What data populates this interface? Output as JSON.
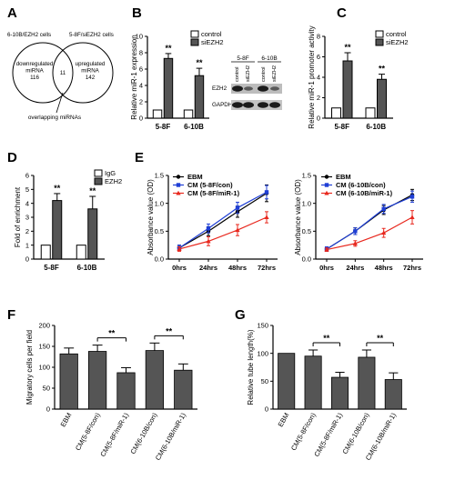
{
  "panels": {
    "A": {
      "letter": "A",
      "left_label": "6-10B/EZH2 cells",
      "right_label": "5-8F/siEZH2 cells",
      "left_inner": "downregulated\nmiRNA\n116",
      "right_inner": "upregulated\nmiRNA\n142",
      "overlap_count": "11",
      "bottom_label": "overlapping miRNAs"
    },
    "B": {
      "letter": "B",
      "western": {
        "cell_lines": [
          "5-8F",
          "6-10B"
        ],
        "lanes": [
          "control",
          "siEZH2",
          "control",
          "siEZH2"
        ],
        "rows": [
          "EZH2",
          "GAPDH"
        ]
      }
    },
    "C": {
      "letter": "C"
    },
    "D": {
      "letter": "D"
    },
    "E": {
      "letter": "E"
    },
    "F": {
      "letter": "F"
    },
    "G": {
      "letter": "G"
    }
  },
  "chart_data": [
    {
      "id": "B",
      "type": "bar",
      "ylabel": "Relative miR-1 expression",
      "ylim": [
        0,
        10
      ],
      "yticks": [
        0,
        2,
        4,
        6,
        8,
        10
      ],
      "categories": [
        "5-8F",
        "6-10B"
      ],
      "series": [
        {
          "name": "control",
          "values": [
            1.0,
            1.0
          ],
          "errors": [
            0,
            0
          ],
          "fill": "#ffffff"
        },
        {
          "name": "siEZH2",
          "values": [
            7.3,
            5.2
          ],
          "errors": [
            0.6,
            0.9
          ],
          "fill": "#555555"
        }
      ],
      "annotations": [
        "**",
        "**"
      ],
      "legend": "top-right"
    },
    {
      "id": "C",
      "type": "bar",
      "ylabel": "Relative miR-1 promoter activity",
      "ylim": [
        0,
        8
      ],
      "yticks": [
        0,
        2,
        4,
        6,
        8
      ],
      "categories": [
        "5-8F",
        "6-10B"
      ],
      "series": [
        {
          "name": "control",
          "values": [
            1.0,
            1.0
          ],
          "errors": [
            0,
            0
          ],
          "fill": "#ffffff"
        },
        {
          "name": "siEZH2",
          "values": [
            5.6,
            3.8
          ],
          "errors": [
            0.8,
            0.5
          ],
          "fill": "#555555"
        }
      ],
      "annotations": [
        "**",
        "**"
      ],
      "legend": "top-right"
    },
    {
      "id": "D",
      "type": "bar",
      "ylabel": "Fold of enrichment",
      "ylim": [
        0,
        6
      ],
      "yticks": [
        0,
        1,
        2,
        3,
        4,
        5,
        6
      ],
      "categories": [
        "5-8F",
        "6-10B"
      ],
      "series": [
        {
          "name": "IgG",
          "values": [
            1.0,
            1.0
          ],
          "errors": [
            0,
            0
          ],
          "fill": "#ffffff"
        },
        {
          "name": "EZH2",
          "values": [
            4.2,
            3.6
          ],
          "errors": [
            0.5,
            0.9
          ],
          "fill": "#555555"
        }
      ],
      "annotations": [
        "**",
        "**"
      ],
      "legend": "top-right"
    },
    {
      "id": "E1",
      "type": "line",
      "ylabel": "Absorbance value (OD)",
      "ylim": [
        0,
        1.5
      ],
      "yticks": [
        0.0,
        0.5,
        1.0,
        1.5
      ],
      "categories": [
        "0hrs",
        "24hrs",
        "48hrs",
        "72hrs"
      ],
      "series": [
        {
          "name": "EBM",
          "values": [
            0.2,
            0.5,
            0.85,
            1.18
          ],
          "errors": [
            0.05,
            0.08,
            0.1,
            0.15
          ],
          "color": "#000000",
          "marker": "circle"
        },
        {
          "name": "CM (5-8F/con)",
          "values": [
            0.2,
            0.55,
            0.92,
            1.2
          ],
          "errors": [
            0.05,
            0.08,
            0.1,
            0.12
          ],
          "color": "#1f3fd6",
          "marker": "square"
        },
        {
          "name": "CM (5-8F/miR-1)",
          "values": [
            0.18,
            0.32,
            0.52,
            0.75
          ],
          "errors": [
            0.04,
            0.08,
            0.1,
            0.1
          ],
          "color": "#e8281e",
          "marker": "triangle"
        }
      ],
      "legend": "top-left"
    },
    {
      "id": "E2",
      "type": "line",
      "ylabel": "Absorbance value (OD)",
      "ylim": [
        0,
        1.5
      ],
      "yticks": [
        0.0,
        0.5,
        1.0,
        1.5
      ],
      "categories": [
        "0hrs",
        "24hrs",
        "48hrs",
        "72hrs"
      ],
      "series": [
        {
          "name": "EBM",
          "values": [
            0.18,
            0.5,
            0.88,
            1.15
          ],
          "errors": [
            0.04,
            0.06,
            0.08,
            0.1
          ],
          "color": "#000000",
          "marker": "circle"
        },
        {
          "name": "CM (6-10B/con)",
          "values": [
            0.18,
            0.5,
            0.9,
            1.12
          ],
          "errors": [
            0.04,
            0.06,
            0.08,
            0.1
          ],
          "color": "#1f3fd6",
          "marker": "square"
        },
        {
          "name": "CM (6-10B/miR-1)",
          "values": [
            0.17,
            0.28,
            0.47,
            0.75
          ],
          "errors": [
            0.03,
            0.05,
            0.08,
            0.12
          ],
          "color": "#e8281e",
          "marker": "triangle"
        }
      ],
      "legend": "top-left"
    },
    {
      "id": "F",
      "type": "bar",
      "ylabel": "Migratory cells per field",
      "ylim": [
        0,
        200
      ],
      "yticks": [
        0,
        50,
        100,
        150,
        200
      ],
      "categories": [
        "EBM",
        "CM(5-8F/con)",
        "CM(5-8F/miR-1)",
        "CM(6-10B/con)",
        "CM(6-10B/miR-1)"
      ],
      "values": [
        132,
        138,
        87,
        140,
        93
      ],
      "errors": [
        14,
        15,
        12,
        18,
        15
      ],
      "fill": "#555555",
      "brackets": [
        {
          "from": 1,
          "to": 2,
          "label": "**"
        },
        {
          "from": 3,
          "to": 4,
          "label": "**"
        }
      ]
    },
    {
      "id": "G",
      "type": "bar",
      "ylabel": "Relative tube length(%)",
      "ylim": [
        0,
        150
      ],
      "yticks": [
        0,
        50,
        100,
        150
      ],
      "categories": [
        "EBM",
        "CM(5-8F/con)",
        "CM(5-8F/miR-1)",
        "CM(6-10B/con)",
        "CM(6-10B/miR-1)"
      ],
      "values": [
        100,
        95,
        57,
        93,
        53
      ],
      "errors": [
        0,
        11,
        9,
        13,
        12
      ],
      "fill": "#555555",
      "brackets": [
        {
          "from": 1,
          "to": 2,
          "label": "**"
        },
        {
          "from": 3,
          "to": 4,
          "label": "**"
        }
      ]
    }
  ]
}
